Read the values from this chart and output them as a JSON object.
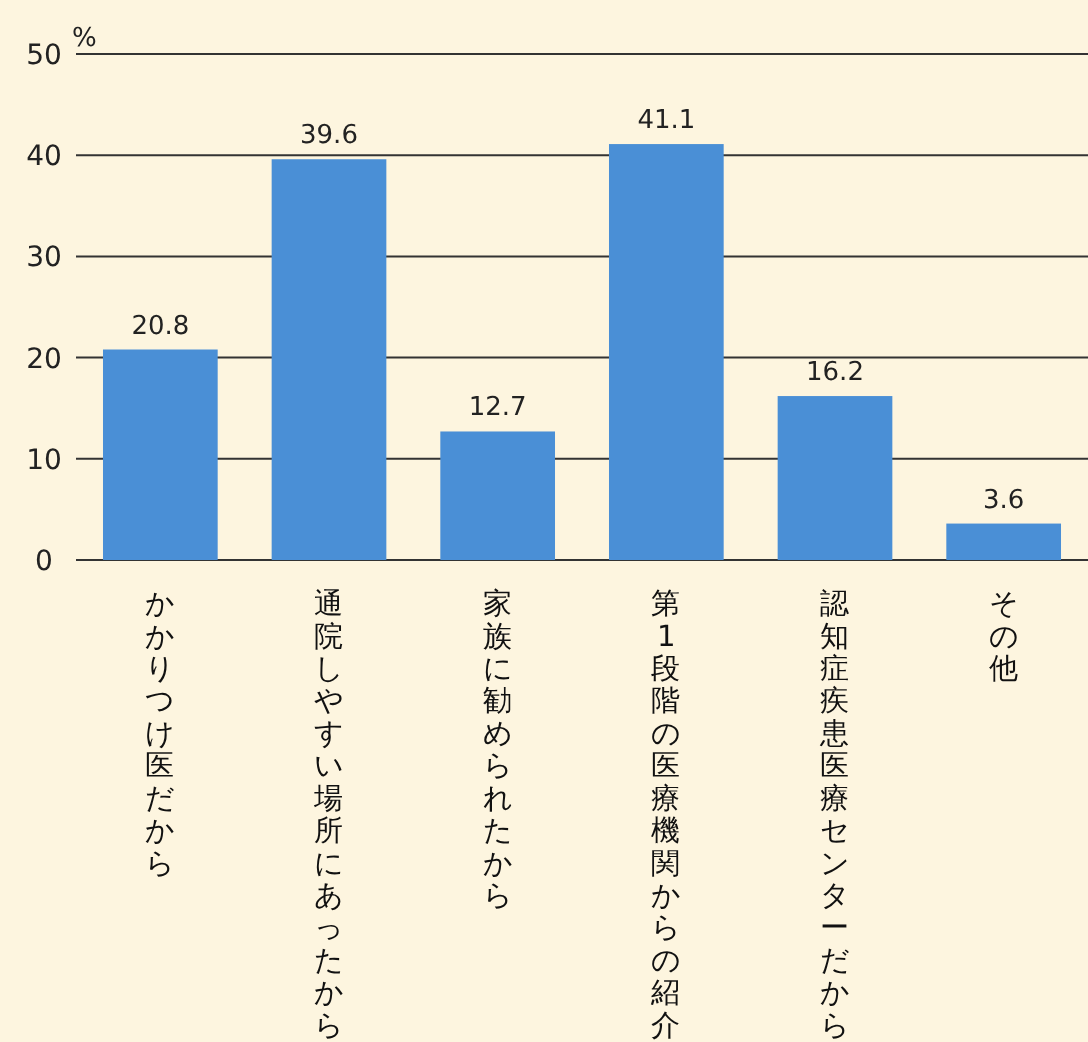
{
  "chart_data": {
    "type": "bar",
    "ylabel": "%",
    "categories": [
      "かかりつけ医だから",
      "通院しやすい場所にあったから",
      "家族に勧められたから",
      "第1段階の医療機関からの紹介",
      "認知症疾患医療センターだから",
      "その他"
    ],
    "values": [
      20.8,
      39.6,
      12.7,
      41.1,
      16.2,
      3.6
    ],
    "color": "#4a8fd6",
    "ylim": [
      0,
      50
    ],
    "yticks": [
      0,
      10,
      20,
      30,
      40,
      50
    ],
    "grid": "y",
    "data_labels": true
  }
}
